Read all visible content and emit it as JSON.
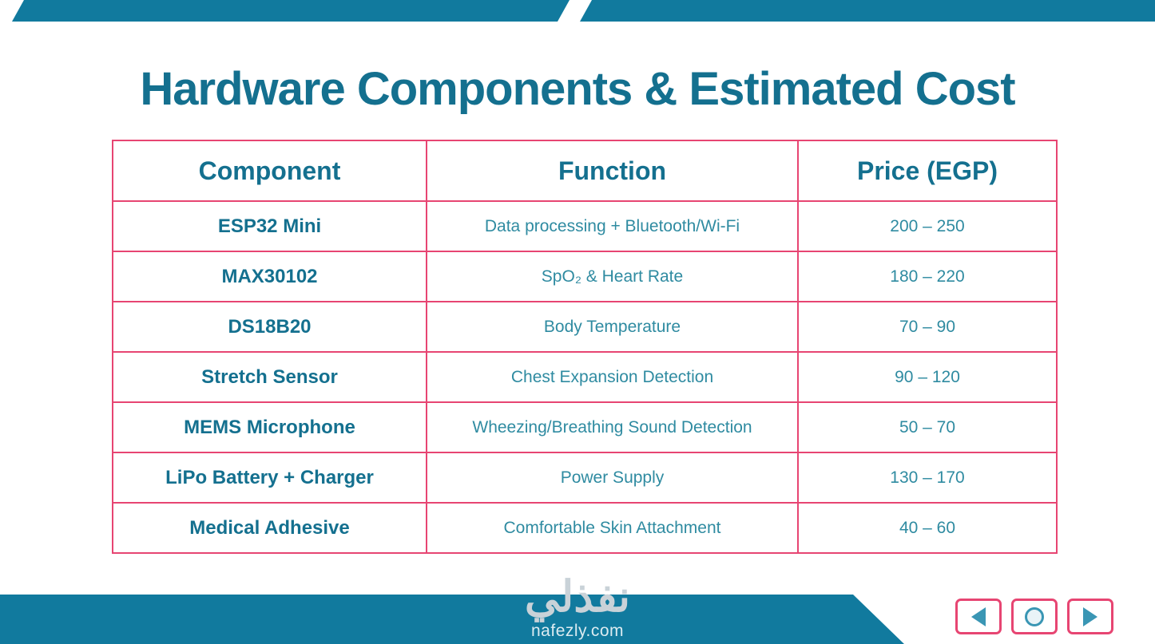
{
  "title": "Hardware Components & Estimated Cost",
  "table": {
    "headers": [
      "Component",
      "Function",
      "Price (EGP)"
    ],
    "rows": [
      {
        "component": "ESP32 Mini",
        "function": "Data processing + Bluetooth/Wi-Fi",
        "price": "200 – 250"
      },
      {
        "component": "MAX30102",
        "function": "SpO₂ & Heart Rate",
        "price": "180 – 220"
      },
      {
        "component": "DS18B20",
        "function": "Body Temperature",
        "price": "70 – 90"
      },
      {
        "component": "Stretch Sensor",
        "function": "Chest Expansion Detection",
        "price": "90 – 120"
      },
      {
        "component": "MEMS Microphone",
        "function": "Wheezing/Breathing Sound Detection",
        "price": "50 – 70"
      },
      {
        "component": "LiPo Battery + Charger",
        "function": "Power Supply",
        "price": "130 – 170"
      },
      {
        "component": "Medical Adhesive",
        "function": "Comfortable Skin Attachment",
        "price": "40 – 60"
      }
    ]
  },
  "watermark": {
    "logo": "نفذلي",
    "domain": "nafezly.com"
  },
  "nav": {
    "prev_icon": "left-arrow-icon",
    "home_icon": "circle-icon",
    "next_icon": "right-arrow-icon"
  },
  "colors": {
    "accent_teal": "#14708f",
    "bar_teal": "#117a9e",
    "light_teal_text": "#2f8ba1",
    "border_pink": "#e74572"
  }
}
